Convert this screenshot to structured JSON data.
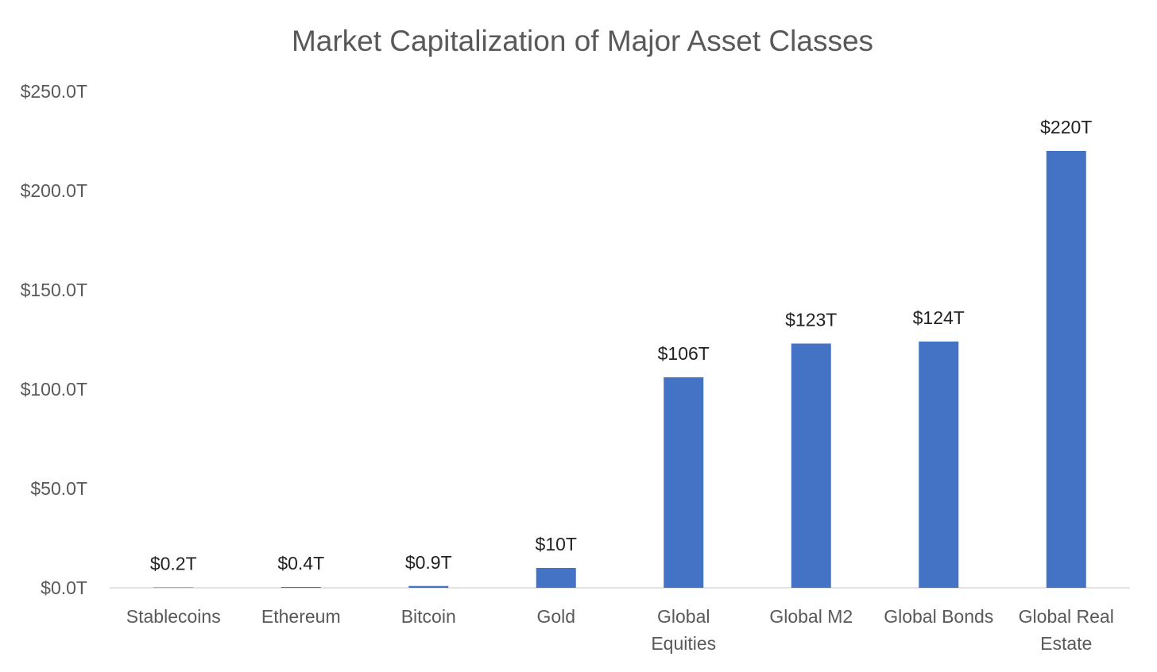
{
  "chart_data": {
    "type": "bar",
    "title": "Market Capitalization of Major Asset Classes",
    "categories": [
      [
        "Stablecoins"
      ],
      [
        "Ethereum"
      ],
      [
        "Bitcoin"
      ],
      [
        "Gold"
      ],
      [
        "Global",
        "Equities"
      ],
      [
        "Global M2"
      ],
      [
        "Global Bonds"
      ],
      [
        "Global Real",
        "Estate"
      ]
    ],
    "values": [
      0.2,
      0.4,
      0.9,
      10,
      106,
      123,
      124,
      220
    ],
    "data_labels": [
      "$0.2T",
      "$0.4T",
      "$0.9T",
      "$10T",
      "$106T",
      "$123T",
      "$124T",
      "$220T"
    ],
    "ylim": [
      0,
      250
    ],
    "y_ticks": [
      0,
      50,
      100,
      150,
      200,
      250
    ],
    "y_tick_labels": [
      "$0.0T",
      "$50.0T",
      "$100.0T",
      "$150.0T",
      "$200.0T",
      "$250.0T"
    ],
    "xlabel": "",
    "ylabel": "",
    "grid": false,
    "legend": "none",
    "bar_color": "#4472C4",
    "axis_color": "#D9D9D9"
  }
}
